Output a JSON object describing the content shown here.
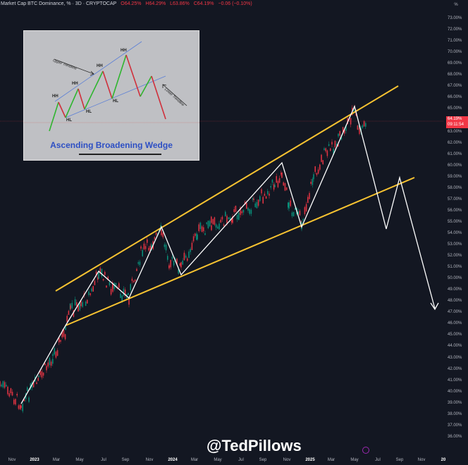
{
  "header": {
    "symbol_title": "Market Cap BTC Dominance, % · 3D · CRYPTOCAP",
    "open": "O64.25%",
    "high": "H64.29%",
    "low": "L63.86%",
    "close": "C64.19%",
    "change": "−0.06 (−0.10%)"
  },
  "axis": {
    "unit_label": "%",
    "current_price": "64.19%",
    "countdown": "09:11:54"
  },
  "watermark": "@TedPillows",
  "inset": {
    "title": "Ascending Broadening Wedge",
    "upper_note": "Upper Trendline",
    "lower_note": "Lower Trendline",
    "labels": [
      "HH",
      "HH",
      "HH",
      "HH",
      "HL",
      "HL",
      "HL"
    ]
  },
  "colors": {
    "background": "#131722",
    "up_candle": "#089981",
    "down_candle": "#f23645",
    "trendline": "#f7c331",
    "projection": "#ffffff",
    "price_label": "#f23645",
    "inset_title": "#2d4fc4"
  },
  "chart_data": {
    "type": "line",
    "title": "Market Cap BTC Dominance, % · 3D · CRYPTOCAP",
    "xlabel": "",
    "ylabel": "%",
    "ylim": [
      36,
      73
    ],
    "grid": false,
    "y_ticks": [
      "73.00%",
      "72.00%",
      "71.00%",
      "70.00%",
      "69.00%",
      "68.00%",
      "67.00%",
      "66.00%",
      "65.00%",
      "63.00%",
      "62.00%",
      "61.00%",
      "60.00%",
      "59.00%",
      "58.00%",
      "57.00%",
      "56.00%",
      "55.00%",
      "54.00%",
      "53.00%",
      "52.00%",
      "51.00%",
      "50.00%",
      "49.00%",
      "48.00%",
      "47.00%",
      "46.00%",
      "45.00%",
      "44.00%",
      "43.00%",
      "42.00%",
      "41.00%",
      "40.00%",
      "39.00%",
      "38.00%",
      "37.00%",
      "36.00%"
    ],
    "x_ticks": [
      "Nov",
      "2023",
      "Mar",
      "May",
      "Jul",
      "Sep",
      "Nov",
      "2024",
      "Mar",
      "May",
      "Jul",
      "Sep",
      "Nov",
      "2025",
      "Mar",
      "May",
      "Jul",
      "Sep",
      "Nov",
      "20"
    ],
    "current_value": 64.19,
    "ohlc_last": {
      "open": 64.25,
      "high": 64.29,
      "low": 63.86,
      "close": 64.19,
      "change": -0.06,
      "change_pct": -0.1
    },
    "series": [
      {
        "name": "Upper trendline (wedge)",
        "x": [
          "2023-02",
          "2025-07"
        ],
        "values": [
          49.3,
          67.3
        ]
      },
      {
        "name": "Lower trendline (wedge)",
        "x": [
          "2023-03",
          "2025-08"
        ],
        "values": [
          46.3,
          59.2
        ]
      },
      {
        "name": "Zigzag path + projection",
        "x": [
          "2022-12",
          "2023-03",
          "2023-07",
          "2023-09",
          "2023-12",
          "2024-02",
          "2024-10",
          "2024-11",
          "2025-05",
          "2025-06",
          "2025-07",
          "2025-08",
          "2025-10"
        ],
        "values": [
          39.9,
          46.8,
          51.3,
          48.9,
          55.2,
          51.0,
          60.9,
          55.2,
          65.5,
          59.8,
          54.7,
          59.3,
          49.6
        ]
      }
    ],
    "annotations": [
      "Ascending Broadening Wedge inset diagram",
      "@TedPillows"
    ]
  }
}
